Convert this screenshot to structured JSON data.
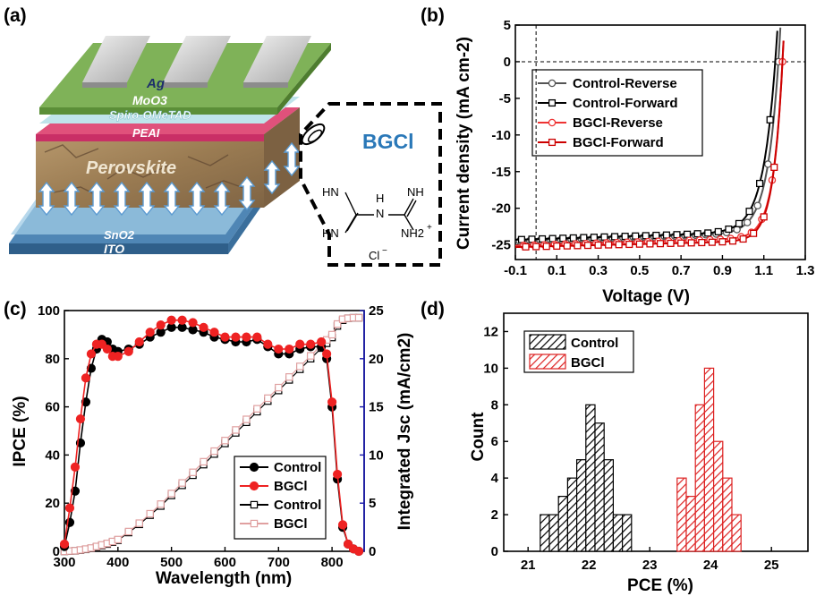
{
  "panels": {
    "a": "(a)",
    "b": "(b)",
    "c": "(c)",
    "d": "(d)"
  },
  "schematic": {
    "layers": [
      "Ag",
      "MoO3",
      "Spiro-OMeTAD",
      "PEAI",
      "Perovskite",
      "SnO2",
      "ITO"
    ],
    "molecule_name": "BGCl",
    "molecule_labels": [
      "HN",
      "HN",
      "H",
      "N",
      "NH",
      "NH2",
      "+",
      "Cl",
      "−"
    ],
    "colors": {
      "ag": "#d9d9d9",
      "moo3": "#6d9f4a",
      "spiro": "#bfe4ea",
      "peai": "#e8457f",
      "perovskite": "#a0825b",
      "sno2": "#7fb0cf",
      "ito": "#4f86b5",
      "accent": "#2a78b8"
    }
  },
  "chart_data": [
    {
      "panel": "b",
      "type": "line",
      "ylabel": "Current density (mA cm-2)",
      "xlabel": "Voltage (V)",
      "xlim": [
        -0.1,
        1.3
      ],
      "ylim": [
        -27,
        5
      ],
      "xticks": [
        -0.1,
        0.1,
        0.3,
        0.5,
        0.7,
        0.9,
        1.1,
        1.3
      ],
      "yticks": [
        5,
        0,
        -5,
        -10,
        -15,
        -20,
        -25
      ],
      "legend": "upper-left",
      "series": [
        {
          "name": "Control-Reverse",
          "color": "#555555",
          "marker": "circle",
          "jsc": -24.5,
          "voc": 1.17,
          "knee": 1.03,
          "sharp": 0.055
        },
        {
          "name": "Control-Forward",
          "color": "#000000",
          "marker": "square",
          "jsc": -24.3,
          "voc": 1.155,
          "knee": 1.0,
          "sharp": 0.06
        },
        {
          "name": "BGCl-Reverse",
          "color": "#ee3333",
          "marker": "circle",
          "jsc": -25.1,
          "voc": 1.19,
          "knee": 1.07,
          "sharp": 0.045
        },
        {
          "name": "BGCl-Forward",
          "color": "#cc0000",
          "marker": "square",
          "jsc": -25.3,
          "voc": 1.19,
          "knee": 1.06,
          "sharp": 0.045
        }
      ]
    },
    {
      "panel": "c",
      "type": "line",
      "xlabel": "Wavelength (nm)",
      "ylabel": "IPCE (%)",
      "y2label": "Integrated Jsc (mA/cm2)",
      "xlim": [
        300,
        860
      ],
      "ylim": [
        0,
        100
      ],
      "y2lim": [
        0,
        25
      ],
      "xticks": [
        300,
        400,
        500,
        600,
        700,
        800
      ],
      "yticks": [
        0,
        20,
        40,
        60,
        80,
        100
      ],
      "y2ticks": [
        0,
        5,
        10,
        15,
        20,
        25
      ],
      "legend": "lower-right",
      "x": [
        300,
        310,
        320,
        330,
        340,
        350,
        360,
        370,
        380,
        390,
        400,
        420,
        440,
        460,
        480,
        500,
        520,
        540,
        560,
        580,
        600,
        620,
        640,
        660,
        680,
        700,
        720,
        740,
        760,
        780,
        790,
        800,
        810,
        820,
        830,
        840,
        850
      ],
      "series": [
        {
          "name": "Control",
          "axis": "left",
          "color": "#000000",
          "marker": "filled-circle",
          "values": [
            2,
            12,
            25,
            45,
            62,
            76,
            84,
            88,
            87,
            84,
            83,
            84,
            86,
            89,
            91,
            93,
            93,
            92,
            91,
            89,
            88,
            87,
            87,
            88,
            85,
            82,
            82,
            84,
            85,
            85,
            80,
            60,
            30,
            10,
            3,
            1,
            0
          ]
        },
        {
          "name": "BGCl",
          "axis": "left",
          "color": "#ee2222",
          "marker": "filled-circle",
          "values": [
            3,
            18,
            35,
            55,
            72,
            82,
            86,
            86,
            84,
            81,
            81,
            83,
            87,
            91,
            94,
            96,
            96,
            95,
            93,
            91,
            89,
            89,
            89,
            89,
            86,
            84,
            84,
            86,
            86,
            87,
            82,
            62,
            32,
            11,
            3,
            1,
            0
          ]
        },
        {
          "name": "Control",
          "axis": "right",
          "color": "#000000",
          "marker": "open-square",
          "values": [
            0,
            0.02,
            0.05,
            0.12,
            0.2,
            0.3,
            0.45,
            0.6,
            0.75,
            0.95,
            1.15,
            1.95,
            2.8,
            3.75,
            4.7,
            5.8,
            6.85,
            7.9,
            9.0,
            10.1,
            11.2,
            12.3,
            13.4,
            14.5,
            15.6,
            16.7,
            17.8,
            18.9,
            20.0,
            21.1,
            21.6,
            22.2,
            23.4,
            24.0,
            24.2,
            24.25,
            24.25
          ]
        },
        {
          "name": "BGCl",
          "axis": "right",
          "color": "#e0a0a0",
          "marker": "open-square",
          "values": [
            0,
            0.03,
            0.06,
            0.14,
            0.23,
            0.34,
            0.5,
            0.66,
            0.82,
            1.02,
            1.22,
            2.05,
            2.92,
            3.9,
            4.9,
            6.0,
            7.1,
            8.2,
            9.3,
            10.4,
            11.5,
            12.6,
            13.7,
            14.8,
            15.9,
            17.0,
            18.1,
            19.2,
            20.3,
            21.4,
            21.95,
            22.5,
            23.6,
            24.1,
            24.2,
            24.25,
            24.25
          ]
        }
      ]
    },
    {
      "panel": "d",
      "type": "bar",
      "xlabel": "PCE (%)",
      "ylabel": "Count",
      "xlim": [
        20.6,
        25.6
      ],
      "ylim": [
        0,
        13
      ],
      "xticks": [
        21,
        22,
        23,
        24,
        25
      ],
      "yticks": [
        0,
        2,
        4,
        6,
        8,
        10,
        12
      ],
      "bin_width": 0.15,
      "legend": "top-left",
      "series": [
        {
          "name": "Control",
          "color": "#000000",
          "fill": "hatch-black",
          "bins": [
            21.2,
            21.35,
            21.5,
            21.65,
            21.8,
            21.95,
            22.1,
            22.25,
            22.4,
            22.55
          ],
          "counts": [
            2,
            2,
            3,
            4,
            5,
            8,
            7,
            5,
            2,
            2
          ]
        },
        {
          "name": "BGCl",
          "color": "#dd2222",
          "fill": "hatch-red",
          "bins": [
            23.45,
            23.6,
            23.75,
            23.9,
            24.05,
            24.2,
            24.35
          ],
          "counts": [
            4,
            3,
            8,
            10,
            6,
            4,
            2
          ]
        }
      ]
    }
  ]
}
